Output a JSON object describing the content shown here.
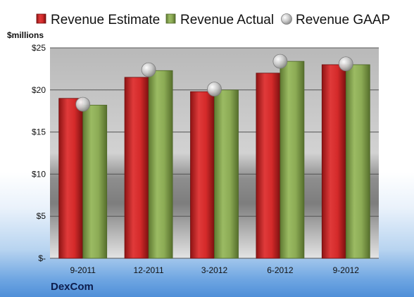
{
  "chart_data": {
    "type": "bar",
    "title": "",
    "ylabel": "$millions",
    "company": "DexCom",
    "categories": [
      "9-2011",
      "12-2011",
      "3-2012",
      "6-2012",
      "9-2012"
    ],
    "ylim": [
      0,
      25
    ],
    "yticks": [
      0,
      5,
      10,
      15,
      20,
      25
    ],
    "ytick_labels": [
      "$-",
      "$5",
      "$10",
      "$15",
      "$20",
      "$25"
    ],
    "grid": true,
    "legend_position": "top",
    "series": [
      {
        "name": "Revenue Estimate",
        "kind": "bar",
        "color": "#d42a2a",
        "values": [
          19.0,
          21.5,
          19.8,
          22.0,
          23.0
        ]
      },
      {
        "name": "Revenue Actual",
        "kind": "bar",
        "color": "#8cab55",
        "values": [
          18.2,
          22.3,
          20.0,
          23.4,
          23.0
        ]
      },
      {
        "name": "Revenue GAAP",
        "kind": "marker",
        "color": "#c0c0c0",
        "values": [
          18.3,
          22.4,
          20.1,
          23.4,
          23.1
        ]
      }
    ]
  }
}
